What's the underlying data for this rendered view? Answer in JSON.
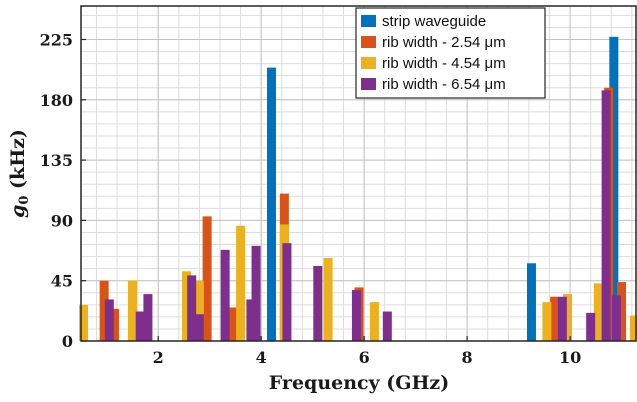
{
  "chart_data": {
    "type": "bar",
    "xlabel": "Frequency (GHz)",
    "ylabel_symbol": "g",
    "ylabel_subscript": "0",
    "ylabel_unit": " (kHz)",
    "xlim": [
      0.5,
      11.3
    ],
    "ylim": [
      0,
      250
    ],
    "xticks": [
      2,
      4,
      6,
      8,
      10
    ],
    "yticks": [
      0,
      45,
      90,
      135,
      180,
      225
    ],
    "grid": true,
    "minor_grid": true,
    "legend_position": "top-right",
    "series": [
      {
        "name": "strip waveguide",
        "color": "#0072BD",
        "points": [
          {
            "x": 4.2,
            "y": 204
          },
          {
            "x": 9.25,
            "y": 58
          },
          {
            "x": 10.85,
            "y": 227
          }
        ]
      },
      {
        "name": "rib width - 2.54 μm",
        "color": "#D95319",
        "points": [
          {
            "x": 0.95,
            "y": 45
          },
          {
            "x": 1.15,
            "y": 24
          },
          {
            "x": 2.95,
            "y": 93
          },
          {
            "x": 3.45,
            "y": 25
          },
          {
            "x": 4.45,
            "y": 110
          },
          {
            "x": 5.9,
            "y": 40
          },
          {
            "x": 9.7,
            "y": 33
          },
          {
            "x": 10.75,
            "y": 189
          },
          {
            "x": 11.0,
            "y": 44
          }
        ]
      },
      {
        "name": "rib width - 4.54 μm",
        "color": "#EDB120",
        "points": [
          {
            "x": 0.55,
            "y": 27
          },
          {
            "x": 1.5,
            "y": 45
          },
          {
            "x": 2.55,
            "y": 52
          },
          {
            "x": 2.8,
            "y": 45
          },
          {
            "x": 3.6,
            "y": 86
          },
          {
            "x": 4.45,
            "y": 87
          },
          {
            "x": 5.3,
            "y": 62
          },
          {
            "x": 6.2,
            "y": 29
          },
          {
            "x": 9.55,
            "y": 29
          },
          {
            "x": 9.95,
            "y": 35
          },
          {
            "x": 10.55,
            "y": 43
          },
          {
            "x": 11.25,
            "y": 19
          }
        ]
      },
      {
        "name": "rib width - 6.54 μm",
        "color": "#7E2F8E",
        "points": [
          {
            "x": 1.05,
            "y": 31
          },
          {
            "x": 1.65,
            "y": 22
          },
          {
            "x": 1.8,
            "y": 35
          },
          {
            "x": 2.65,
            "y": 49
          },
          {
            "x": 2.8,
            "y": 20
          },
          {
            "x": 3.3,
            "y": 68
          },
          {
            "x": 3.8,
            "y": 31
          },
          {
            "x": 3.9,
            "y": 71
          },
          {
            "x": 4.5,
            "y": 73
          },
          {
            "x": 5.1,
            "y": 56
          },
          {
            "x": 5.85,
            "y": 38
          },
          {
            "x": 6.45,
            "y": 22
          },
          {
            "x": 9.85,
            "y": 33
          },
          {
            "x": 10.4,
            "y": 21
          },
          {
            "x": 10.7,
            "y": 187
          },
          {
            "x": 10.9,
            "y": 34
          }
        ]
      }
    ]
  }
}
